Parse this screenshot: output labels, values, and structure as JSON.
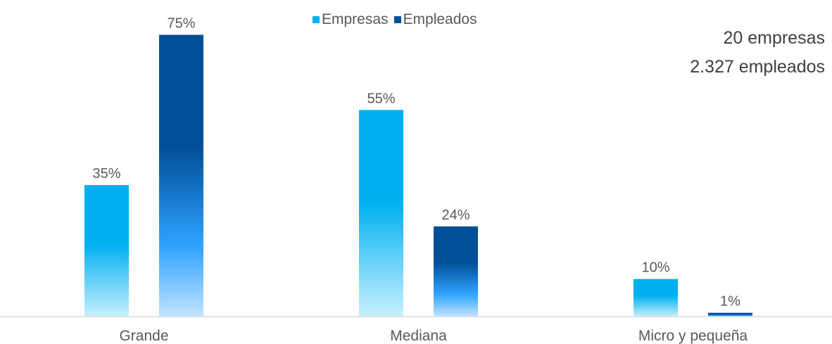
{
  "chart_data": {
    "type": "bar",
    "categories": [
      "Grande",
      "Mediana",
      "Micro y pequeña"
    ],
    "series": [
      {
        "name": "Empresas",
        "values": [
          35,
          55,
          10
        ],
        "labels": [
          "35%",
          "55%",
          "10%"
        ],
        "color": "#00b0f0",
        "gradient": [
          "#00b0f0",
          "#00b0f0",
          "#c9f0ff"
        ]
      },
      {
        "name": "Empleados",
        "values": [
          75,
          24,
          1
        ],
        "labels": [
          "75%",
          "24%",
          "1%"
        ],
        "color": "#004f98",
        "gradient": [
          "#004f98",
          "#004f98",
          "#2fa3ff",
          "#c2e3ff"
        ]
      }
    ],
    "ylim": [
      0,
      80
    ],
    "legend": "top-center",
    "grid": false
  },
  "summary": {
    "companies": "20 empresas",
    "employees": "2.327 empleados"
  }
}
